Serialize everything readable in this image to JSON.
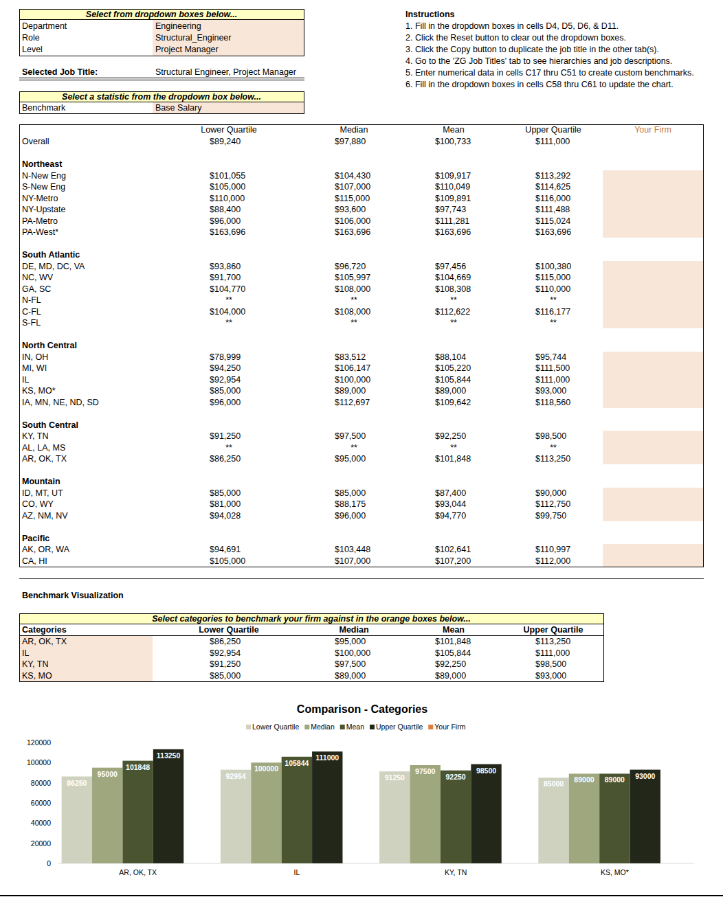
{
  "header": {
    "prompt": "Select from dropdown boxes below...",
    "fields": [
      {
        "label": "Department",
        "value": "Engineering"
      },
      {
        "label": "Role",
        "value": "Structural_Engineer"
      },
      {
        "label": "Level",
        "value": "Project Manager"
      }
    ],
    "selected_label": "Selected Job Title:",
    "selected_value": "Structural Engineer, Project Manager"
  },
  "benchmark": {
    "prompt": "Select a statistic from the dropdown box below...",
    "label": "Benchmark",
    "value": "Base Salary"
  },
  "instructions": {
    "title": "Instructions",
    "items": [
      "1. Fill in the dropdown boxes in cells D4, D5, D6, & D11.",
      "2. Click the Reset button to clear out the dropdown boxes.",
      "3. Click the Copy button to duplicate the job title in the other tab(s).",
      "4. Go to the 'ZG Job Titles' tab to see hierarchies and job descriptions.",
      "5. Enter numerical data in cells C17 thru C51 to create custom benchmarks.",
      "6. Fill in the dropdown boxes in cells C58 thru C61 to update the chart."
    ]
  },
  "table": {
    "columns": [
      "Lower Quartile",
      "Median",
      "Mean",
      "Upper Quartile"
    ],
    "your_firm": "Your Firm",
    "overall": {
      "label": "Overall",
      "values": [
        "$89,240",
        "$97,880",
        "$100,733",
        "$111,000"
      ]
    },
    "groups": [
      {
        "name": "Northeast",
        "rows": [
          {
            "label": "N-New Eng",
            "values": [
              "$101,055",
              "$104,430",
              "$109,917",
              "$113,292"
            ]
          },
          {
            "label": "S-New Eng",
            "values": [
              "$105,000",
              "$107,000",
              "$110,049",
              "$114,625"
            ]
          },
          {
            "label": "NY-Metro",
            "values": [
              "$110,000",
              "$115,000",
              "$109,891",
              "$116,000"
            ]
          },
          {
            "label": "NY-Upstate",
            "values": [
              "$88,400",
              "$93,600",
              "$97,743",
              "$111,488"
            ]
          },
          {
            "label": "PA-Metro",
            "values": [
              "$96,000",
              "$106,000",
              "$111,281",
              "$115,024"
            ]
          },
          {
            "label": "PA-West*",
            "values": [
              "$163,696",
              "$163,696",
              "$163,696",
              "$163,696"
            ]
          }
        ]
      },
      {
        "name": "South Atlantic",
        "rows": [
          {
            "label": "DE, MD, DC, VA",
            "values": [
              "$93,860",
              "$96,720",
              "$97,456",
              "$100,380"
            ]
          },
          {
            "label": "NC, WV",
            "values": [
              "$91,700",
              "$105,997",
              "$104,669",
              "$115,000"
            ]
          },
          {
            "label": "GA, SC",
            "values": [
              "$104,770",
              "$108,000",
              "$108,308",
              "$110,000"
            ]
          },
          {
            "label": "N-FL",
            "values": [
              "**",
              "**",
              "**",
              "**"
            ]
          },
          {
            "label": "C-FL",
            "values": [
              "$104,000",
              "$108,000",
              "$112,622",
              "$116,177"
            ]
          },
          {
            "label": "S-FL",
            "values": [
              "**",
              "**",
              "**",
              "**"
            ]
          }
        ]
      },
      {
        "name": "North Central",
        "rows": [
          {
            "label": "IN, OH",
            "values": [
              "$78,999",
              "$83,512",
              "$88,104",
              "$95,744"
            ]
          },
          {
            "label": "MI, WI",
            "values": [
              "$94,250",
              "$106,147",
              "$105,220",
              "$111,500"
            ]
          },
          {
            "label": "IL",
            "values": [
              "$92,954",
              "$100,000",
              "$105,844",
              "$111,000"
            ]
          },
          {
            "label": "KS, MO*",
            "values": [
              "$85,000",
              "$89,000",
              "$89,000",
              "$93,000"
            ]
          },
          {
            "label": "IA, MN, NE, ND, SD",
            "values": [
              "$96,000",
              "$112,697",
              "$109,642",
              "$118,560"
            ]
          }
        ]
      },
      {
        "name": "South Central",
        "rows": [
          {
            "label": "KY, TN",
            "values": [
              "$91,250",
              "$97,500",
              "$92,250",
              "$98,500"
            ]
          },
          {
            "label": "AL, LA, MS",
            "values": [
              "**",
              "**",
              "**",
              "**"
            ]
          },
          {
            "label": "AR, OK, TX",
            "values": [
              "$86,250",
              "$95,000",
              "$101,848",
              "$113,250"
            ]
          }
        ]
      },
      {
        "name": "Mountain",
        "rows": [
          {
            "label": "ID, MT, UT",
            "values": [
              "$85,000",
              "$85,000",
              "$87,400",
              "$90,000"
            ]
          },
          {
            "label": "CO, WY",
            "values": [
              "$81,000",
              "$88,175",
              "$93,044",
              "$112,750"
            ]
          },
          {
            "label": "AZ, NM, NV",
            "values": [
              "$94,028",
              "$96,000",
              "$94,770",
              "$99,750"
            ]
          }
        ]
      },
      {
        "name": "Pacific",
        "rows": [
          {
            "label": "AK, OR, WA",
            "values": [
              "$94,691",
              "$103,448",
              "$102,641",
              "$110,997"
            ]
          },
          {
            "label": "CA, HI",
            "values": [
              "$105,000",
              "$107,000",
              "$107,200",
              "$112,000"
            ]
          }
        ]
      }
    ]
  },
  "visualization": {
    "title": "Benchmark Visualization",
    "prompt": "Select categories to benchmark your firm against in the orange boxes below...",
    "header": "Categories",
    "rows": [
      {
        "label": "AR, OK, TX",
        "values": [
          "$86,250",
          "$95,000",
          "$101,848",
          "$113,250"
        ]
      },
      {
        "label": "IL",
        "values": [
          "$92,954",
          "$100,000",
          "$105,844",
          "$111,000"
        ]
      },
      {
        "label": "KY, TN",
        "values": [
          "$91,250",
          "$97,500",
          "$92,250",
          "$98,500"
        ]
      },
      {
        "label": "KS, MO",
        "values": [
          "$85,000",
          "$89,000",
          "$89,000",
          "$93,000"
        ]
      }
    ]
  },
  "chart_data": {
    "type": "bar",
    "title": "Comparison - Categories",
    "categories": [
      "AR, OK, TX",
      "IL",
      "KY, TN",
      "KS, MO*"
    ],
    "series": [
      {
        "name": "Lower Quartile",
        "color": "#cfd2bf",
        "values": [
          86250,
          92954,
          91250,
          85000
        ]
      },
      {
        "name": "Median",
        "color": "#9fa77f",
        "values": [
          95000,
          100000,
          97500,
          89000
        ]
      },
      {
        "name": "Mean",
        "color": "#4a5430",
        "values": [
          101848,
          105844,
          92250,
          89000
        ]
      },
      {
        "name": "Upper Quartile",
        "color": "#23271a",
        "values": [
          113250,
          111000,
          98500,
          93000
        ]
      },
      {
        "name": "Your Firm",
        "color": "#e07b39",
        "values": [
          null,
          null,
          null,
          null
        ]
      }
    ],
    "ylim": [
      0,
      120000
    ],
    "yticks": [
      0,
      20000,
      40000,
      60000,
      80000,
      100000,
      120000
    ],
    "grid": false,
    "data_labels": true,
    "legend": "top"
  }
}
